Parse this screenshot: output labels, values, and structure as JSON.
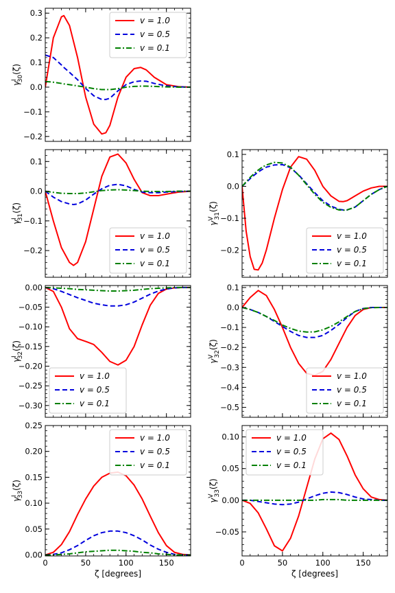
{
  "figure": {
    "background": "#ffffff"
  },
  "styles": {
    "v1": {
      "color": "#ff0000",
      "dash": ""
    },
    "v05": {
      "color": "#0000dd",
      "dash": "7,4"
    },
    "v01": {
      "color": "#008000",
      "dash": "8,3,2,3"
    }
  },
  "chart_data": [
    {
      "id": "gI30",
      "type": "line",
      "ylabel_main": "γ",
      "ylabel_sup": "I",
      "ylabel_sub": "30",
      "ylabel_tail": "(ζ)",
      "xlabel": "",
      "xlim": [
        0,
        180
      ],
      "ylim": [
        -0.22,
        0.32
      ],
      "xticks": [
        0,
        50,
        100,
        150
      ],
      "xtick_labels": [
        "",
        "",
        "",
        ""
      ],
      "yticks": [
        -0.2,
        -0.1,
        0.0,
        0.1,
        0.2,
        0.3
      ],
      "ytick_labels": [
        "−0.2",
        "−0.1",
        "0.0",
        "0.1",
        "0.2",
        "0.3"
      ],
      "legend_position": "top-right",
      "x": [
        0,
        10,
        20,
        23,
        30,
        40,
        50,
        60,
        70,
        75,
        80,
        90,
        100,
        110,
        118,
        125,
        135,
        150,
        165,
        180
      ],
      "series": [
        {
          "name": "v = 1.0",
          "style": "v1",
          "values": [
            0.0,
            0.2,
            0.285,
            0.29,
            0.25,
            0.12,
            -0.04,
            -0.15,
            -0.19,
            -0.185,
            -0.155,
            -0.04,
            0.04,
            0.075,
            0.08,
            0.07,
            0.04,
            0.01,
            0.002,
            0.0
          ]
        },
        {
          "name": "v = 0.5",
          "style": "v05",
          "values": [
            0.13,
            0.12,
            0.09,
            0.08,
            0.06,
            0.03,
            -0.005,
            -0.035,
            -0.05,
            -0.05,
            -0.045,
            -0.015,
            0.01,
            0.022,
            0.025,
            0.024,
            0.015,
            0.005,
            0.001,
            0.0
          ]
        },
        {
          "name": "v = 0.1",
          "style": "v01",
          "values": [
            0.023,
            0.02,
            0.015,
            0.013,
            0.01,
            0.005,
            0.0,
            -0.006,
            -0.01,
            -0.01,
            -0.01,
            -0.006,
            0.0,
            0.003,
            0.004,
            0.004,
            0.003,
            0.001,
            0.0,
            0.0
          ]
        }
      ]
    },
    {
      "id": "gI31",
      "type": "line",
      "ylabel_main": "γ",
      "ylabel_sup": "I",
      "ylabel_sub": "31",
      "ylabel_tail": "(ζ)",
      "xlabel": "",
      "xlim": [
        0,
        180
      ],
      "ylim": [
        -0.29,
        0.14
      ],
      "xticks": [
        0,
        50,
        100,
        150
      ],
      "xtick_labels": [
        "",
        "",
        "",
        ""
      ],
      "yticks": [
        -0.2,
        -0.1,
        0.0,
        0.1
      ],
      "ytick_labels": [
        "−0.2",
        "−0.1",
        "0.0",
        "0.1"
      ],
      "legend_position": "bottom-right",
      "x": [
        0,
        10,
        20,
        30,
        35,
        40,
        50,
        60,
        70,
        80,
        90,
        100,
        110,
        120,
        130,
        140,
        150,
        165,
        180
      ],
      "series": [
        {
          "name": "v = 1.0",
          "style": "v1",
          "values": [
            0.0,
            -0.1,
            -0.19,
            -0.24,
            -0.25,
            -0.24,
            -0.17,
            -0.06,
            0.05,
            0.115,
            0.125,
            0.095,
            0.04,
            -0.005,
            -0.015,
            -0.015,
            -0.01,
            -0.003,
            0.0
          ]
        },
        {
          "name": "v = 0.5",
          "style": "v05",
          "values": [
            0.0,
            -0.02,
            -0.035,
            -0.043,
            -0.045,
            -0.043,
            -0.03,
            -0.01,
            0.008,
            0.02,
            0.023,
            0.018,
            0.006,
            -0.003,
            -0.005,
            -0.005,
            -0.003,
            -0.001,
            0.0
          ]
        },
        {
          "name": "v = 0.1",
          "style": "v01",
          "values": [
            0.0,
            -0.004,
            -0.007,
            -0.008,
            -0.008,
            -0.008,
            -0.006,
            -0.002,
            0.002,
            0.004,
            0.005,
            0.004,
            0.002,
            0.0,
            -0.001,
            -0.001,
            -0.001,
            0.0,
            0.0
          ]
        }
      ]
    },
    {
      "id": "gV31",
      "type": "line",
      "ylabel_main": "γ",
      "ylabel_sup": "V",
      "ylabel_sub": "31",
      "ylabel_tail": "(ζ)",
      "xlabel": "",
      "xlim": [
        0,
        180
      ],
      "ylim": [
        -0.285,
        0.115
      ],
      "xticks": [
        0,
        50,
        100,
        150
      ],
      "xtick_labels": [
        "",
        "",
        "",
        ""
      ],
      "yticks": [
        -0.2,
        -0.1,
        0.0,
        0.1
      ],
      "ytick_labels": [
        "−0.2",
        "−0.1",
        "0.0",
        "0.1"
      ],
      "legend_position": "bottom-right",
      "x": [
        0,
        5,
        10,
        15,
        20,
        25,
        30,
        40,
        50,
        60,
        70,
        80,
        90,
        100,
        110,
        120,
        125,
        130,
        140,
        150,
        160,
        170,
        180
      ],
      "series": [
        {
          "name": "v = 1.0",
          "style": "v1",
          "values": [
            0.0,
            -0.14,
            -0.22,
            -0.26,
            -0.262,
            -0.24,
            -0.2,
            -0.1,
            -0.01,
            0.06,
            0.093,
            0.085,
            0.05,
            0.0,
            -0.03,
            -0.047,
            -0.048,
            -0.045,
            -0.03,
            -0.015,
            -0.005,
            0.0,
            0.0
          ]
        },
        {
          "name": "v = 0.5",
          "style": "v05",
          "values": [
            0.0,
            0.012,
            0.024,
            0.035,
            0.045,
            0.053,
            0.06,
            0.067,
            0.068,
            0.058,
            0.036,
            0.008,
            -0.02,
            -0.045,
            -0.062,
            -0.072,
            -0.074,
            -0.074,
            -0.065,
            -0.045,
            -0.025,
            -0.01,
            0.0
          ]
        },
        {
          "name": "v = 0.1",
          "style": "v01",
          "values": [
            0.0,
            0.014,
            0.028,
            0.04,
            0.051,
            0.06,
            0.067,
            0.075,
            0.073,
            0.06,
            0.035,
            0.005,
            -0.025,
            -0.05,
            -0.066,
            -0.074,
            -0.075,
            -0.074,
            -0.065,
            -0.045,
            -0.025,
            -0.01,
            0.0
          ]
        }
      ]
    },
    {
      "id": "gI32",
      "type": "line",
      "ylabel_main": "γ",
      "ylabel_sup": "I",
      "ylabel_sub": "32",
      "ylabel_tail": "(ζ)",
      "xlabel": "",
      "xlim": [
        0,
        180
      ],
      "ylim": [
        -0.33,
        0.005
      ],
      "xticks": [
        0,
        50,
        100,
        150
      ],
      "xtick_labels": [
        "",
        "",
        "",
        ""
      ],
      "yticks": [
        -0.3,
        -0.25,
        -0.2,
        -0.15,
        -0.1,
        -0.05,
        0.0
      ],
      "ytick_labels": [
        "−0.30",
        "−0.25",
        "−0.20",
        "−0.15",
        "−0.10",
        "−0.05",
        "0.00"
      ],
      "legend_position": "bottom-left",
      "x": [
        0,
        10,
        20,
        30,
        40,
        50,
        60,
        70,
        80,
        90,
        100,
        110,
        120,
        130,
        140,
        150,
        160,
        170,
        180
      ],
      "series": [
        {
          "name": "v = 1.0",
          "style": "v1",
          "values": [
            0.0,
            -0.01,
            -0.05,
            -0.105,
            -0.13,
            -0.137,
            -0.145,
            -0.165,
            -0.188,
            -0.197,
            -0.185,
            -0.15,
            -0.095,
            -0.045,
            -0.015,
            -0.004,
            -0.001,
            0.0,
            0.0
          ]
        },
        {
          "name": "v = 0.5",
          "style": "v05",
          "values": [
            0.0,
            -0.003,
            -0.01,
            -0.018,
            -0.026,
            -0.033,
            -0.04,
            -0.044,
            -0.047,
            -0.047,
            -0.044,
            -0.037,
            -0.027,
            -0.017,
            -0.009,
            -0.004,
            -0.001,
            0.0,
            0.0
          ]
        },
        {
          "name": "v = 0.1",
          "style": "v01",
          "values": [
            0.0,
            -0.001,
            -0.002,
            -0.003,
            -0.005,
            -0.006,
            -0.007,
            -0.008,
            -0.009,
            -0.009,
            -0.008,
            -0.007,
            -0.005,
            -0.003,
            -0.002,
            -0.001,
            0.0,
            0.0,
            0.0
          ]
        }
      ]
    },
    {
      "id": "gV32",
      "type": "line",
      "ylabel_main": "γ",
      "ylabel_sup": "V",
      "ylabel_sub": "32",
      "ylabel_tail": "(ζ)",
      "xlabel": "",
      "xlim": [
        0,
        180
      ],
      "ylim": [
        -0.55,
        0.11
      ],
      "xticks": [
        0,
        50,
        100,
        150
      ],
      "xtick_labels": [
        "",
        "",
        "",
        ""
      ],
      "yticks": [
        -0.5,
        -0.4,
        -0.3,
        -0.2,
        -0.1,
        0.0,
        0.1
      ],
      "ytick_labels": [
        "−0.5",
        "−0.4",
        "−0.3",
        "−0.2",
        "−0.1",
        "0.0",
        "0.1"
      ],
      "legend_position": "bottom-right",
      "x": [
        0,
        10,
        20,
        30,
        40,
        50,
        60,
        70,
        80,
        90,
        100,
        110,
        120,
        130,
        140,
        150,
        160,
        170,
        180
      ],
      "series": [
        {
          "name": "v = 1.0",
          "style": "v1",
          "values": [
            0.0,
            0.05,
            0.085,
            0.06,
            -0.01,
            -0.1,
            -0.2,
            -0.28,
            -0.33,
            -0.34,
            -0.32,
            -0.26,
            -0.18,
            -0.1,
            -0.04,
            -0.01,
            0.0,
            0.0,
            0.0
          ]
        },
        {
          "name": "v = 0.5",
          "style": "v05",
          "values": [
            0.0,
            -0.01,
            -0.025,
            -0.045,
            -0.07,
            -0.095,
            -0.12,
            -0.14,
            -0.15,
            -0.15,
            -0.14,
            -0.115,
            -0.085,
            -0.05,
            -0.02,
            -0.005,
            0.0,
            0.0,
            0.0
          ]
        },
        {
          "name": "v = 0.1",
          "style": "v01",
          "values": [
            0.0,
            -0.01,
            -0.025,
            -0.045,
            -0.065,
            -0.088,
            -0.105,
            -0.118,
            -0.123,
            -0.122,
            -0.112,
            -0.095,
            -0.072,
            -0.045,
            -0.02,
            -0.006,
            -0.001,
            0.0,
            0.0
          ]
        }
      ]
    },
    {
      "id": "gI33",
      "type": "line",
      "ylabel_main": "γ",
      "ylabel_sup": "I",
      "ylabel_sub": "33",
      "ylabel_tail": "(ζ)",
      "xlabel": "ζ [degrees]",
      "xlim": [
        0,
        180
      ],
      "ylim": [
        -0.002,
        0.25
      ],
      "xticks": [
        0,
        50,
        100,
        150
      ],
      "xtick_labels": [
        "0",
        "50",
        "100",
        "150"
      ],
      "yticks": [
        0.0,
        0.05,
        0.1,
        0.15,
        0.2,
        0.25
      ],
      "ytick_labels": [
        "0.00",
        "0.05",
        "0.10",
        "0.15",
        "0.20",
        "0.25"
      ],
      "legend_position": "top-right",
      "x": [
        0,
        10,
        20,
        30,
        40,
        50,
        60,
        70,
        80,
        90,
        100,
        110,
        120,
        130,
        140,
        150,
        160,
        170,
        180
      ],
      "series": [
        {
          "name": "v = 1.0",
          "style": "v1",
          "values": [
            0.0,
            0.005,
            0.02,
            0.045,
            0.078,
            0.108,
            0.133,
            0.15,
            0.158,
            0.16,
            0.153,
            0.135,
            0.108,
            0.075,
            0.043,
            0.018,
            0.005,
            0.001,
            0.0
          ]
        },
        {
          "name": "v = 0.5",
          "style": "v05",
          "values": [
            0.0,
            0.001,
            0.004,
            0.01,
            0.018,
            0.028,
            0.037,
            0.043,
            0.046,
            0.046,
            0.043,
            0.037,
            0.029,
            0.019,
            0.011,
            0.005,
            0.001,
            0.0,
            0.0
          ]
        },
        {
          "name": "v = 0.1",
          "style": "v01",
          "values": [
            0.0,
            0.0,
            0.001,
            0.002,
            0.004,
            0.006,
            0.007,
            0.008,
            0.009,
            0.009,
            0.008,
            0.007,
            0.005,
            0.004,
            0.002,
            0.001,
            0.0,
            0.0,
            0.0
          ]
        }
      ]
    },
    {
      "id": "gV33",
      "type": "line",
      "ylabel_main": "γ",
      "ylabel_sup": "V",
      "ylabel_sub": "33",
      "ylabel_tail": "(ζ)",
      "xlabel": "ζ [degrees]",
      "xlim": [
        0,
        180
      ],
      "ylim": [
        -0.088,
        0.118
      ],
      "xticks": [
        0,
        50,
        100,
        150
      ],
      "xtick_labels": [
        "0",
        "50",
        "100",
        "150"
      ],
      "yticks": [
        -0.05,
        0.0,
        0.05,
        0.1
      ],
      "ytick_labels": [
        "−0.05",
        "0.00",
        "0.05",
        "0.10"
      ],
      "legend_position": "top-left",
      "x": [
        0,
        10,
        20,
        30,
        40,
        50,
        60,
        70,
        80,
        90,
        100,
        110,
        120,
        130,
        140,
        150,
        160,
        170,
        180
      ],
      "series": [
        {
          "name": "v = 1.0",
          "style": "v1",
          "values": [
            0.0,
            -0.005,
            -0.02,
            -0.045,
            -0.072,
            -0.08,
            -0.06,
            -0.025,
            0.02,
            0.065,
            0.097,
            0.106,
            0.096,
            0.07,
            0.04,
            0.018,
            0.005,
            0.001,
            0.0
          ]
        },
        {
          "name": "v = 0.5",
          "style": "v05",
          "values": [
            0.0,
            0.0,
            -0.002,
            -0.004,
            -0.006,
            -0.007,
            -0.006,
            -0.003,
            0.002,
            0.007,
            0.011,
            0.013,
            0.012,
            0.009,
            0.005,
            0.002,
            0.001,
            0.0,
            0.0
          ]
        },
        {
          "name": "v = 0.1",
          "style": "v01",
          "values": [
            0.0,
            0.0,
            0.0,
            0.0,
            0.0,
            0.0,
            0.0,
            0.0,
            0.0,
            0.0,
            0.001,
            0.001,
            0.001,
            0.0,
            0.0,
            0.0,
            0.0,
            0.0,
            0.0
          ]
        }
      ]
    }
  ]
}
